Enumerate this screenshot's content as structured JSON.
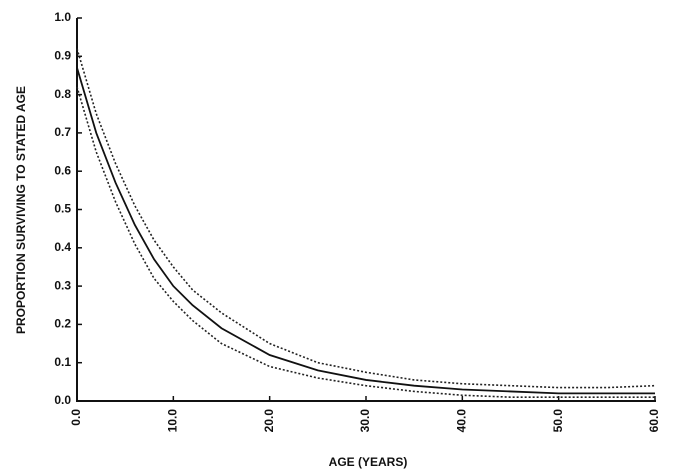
{
  "chart_data": {
    "type": "line",
    "x_label": "AGE (YEARS)",
    "y_label": "PROPORTION SURVIVING TO STATED AGE",
    "x": [
      0,
      2,
      4,
      6,
      8,
      10,
      12,
      15,
      20,
      25,
      30,
      35,
      40,
      45,
      50,
      55,
      60
    ],
    "series": [
      {
        "color": "#111111",
        "style": "solid",
        "values": [
          0.87,
          0.7,
          0.57,
          0.46,
          0.37,
          0.3,
          0.25,
          0.19,
          0.12,
          0.08,
          0.055,
          0.04,
          0.03,
          0.025,
          0.02,
          0.02,
          0.02
        ]
      },
      {
        "color": "#222222",
        "style": "dotted",
        "values": [
          0.92,
          0.75,
          0.62,
          0.51,
          0.42,
          0.35,
          0.29,
          0.23,
          0.15,
          0.1,
          0.075,
          0.055,
          0.045,
          0.04,
          0.035,
          0.035,
          0.04
        ]
      },
      {
        "color": "#222222",
        "style": "dotted",
        "values": [
          0.82,
          0.65,
          0.52,
          0.41,
          0.32,
          0.26,
          0.21,
          0.15,
          0.09,
          0.06,
          0.04,
          0.025,
          0.015,
          0.01,
          0.01,
          0.01,
          0.01
        ]
      }
    ],
    "xlim": [
      0,
      60
    ],
    "xticks": [
      {
        "value": 0,
        "label": "0.0"
      },
      {
        "value": 10,
        "label": "10.0"
      },
      {
        "value": 20,
        "label": "20.0"
      },
      {
        "value": 30,
        "label": "30.0"
      },
      {
        "value": 40,
        "label": "40.0"
      },
      {
        "value": 50,
        "label": "50.0"
      },
      {
        "value": 60,
        "label": "60.0"
      }
    ],
    "ylim": [
      0,
      1
    ],
    "yticks": [
      {
        "value": 0,
        "label": "0.0"
      },
      0.1,
      0.2,
      0.3,
      0.4,
      0.5,
      0.6,
      0.7,
      0.8,
      0.9,
      {
        "value": 1,
        "label": "1.0"
      }
    ],
    "grid": false
  }
}
